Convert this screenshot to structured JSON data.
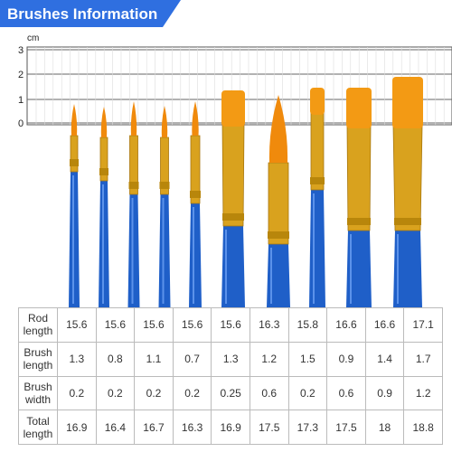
{
  "header": {
    "title": "Brushes Information"
  },
  "ruler": {
    "unit": "cm",
    "labels": [
      "3",
      "2",
      "1",
      "0"
    ]
  },
  "table": {
    "rows": [
      [
        "Rod length",
        "15.6",
        "15.6",
        "15.6",
        "15.6",
        "15.6",
        "16.3",
        "15.8",
        "16.6",
        "16.6",
        "17.1"
      ],
      [
        "Brush length",
        "1.3",
        "0.8",
        "1.1",
        "0.7",
        "1.3",
        "1.2",
        "1.5",
        "0.9",
        "1.4",
        "1.7"
      ],
      [
        "Brush width",
        "0.2",
        "0.2",
        "0.2",
        "0.2",
        "0.25",
        "0.6",
        "0.2",
        "0.6",
        "0.9",
        "1.2"
      ],
      [
        "Total length",
        "16.9",
        "16.4",
        "16.7",
        "16.3",
        "16.9",
        "17.5",
        "17.3",
        "17.5",
        "18",
        "18.8"
      ]
    ]
  }
}
